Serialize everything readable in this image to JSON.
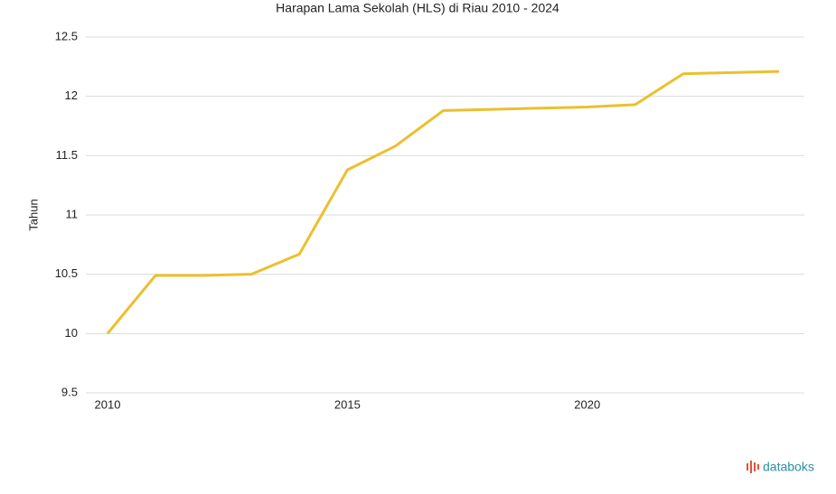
{
  "chart_data": {
    "type": "line",
    "title": "Harapan Lama Sekolah (HLS) di Riau 2010 - 2024",
    "y_label": "Tahun",
    "x": [
      2010,
      2011,
      2012,
      2013,
      2014,
      2015,
      2016,
      2017,
      2018,
      2019,
      2020,
      2021,
      2022,
      2023,
      2024
    ],
    "series": [
      {
        "name": "HLS",
        "color": "#ecbf2e",
        "values": [
          10.0,
          10.49,
          10.49,
          10.5,
          10.67,
          11.38,
          11.58,
          11.88,
          11.89,
          11.9,
          11.91,
          11.93,
          12.19,
          12.2,
          12.21
        ]
      }
    ],
    "xlim": [
      2010,
      2024
    ],
    "xticks": [
      2010,
      2015,
      2020
    ],
    "ylim": [
      9.5,
      12.5
    ],
    "yticks": [
      9.5,
      10,
      10.5,
      11,
      11.5,
      12,
      12.5
    ],
    "grid": true,
    "watermark": "databoks"
  }
}
